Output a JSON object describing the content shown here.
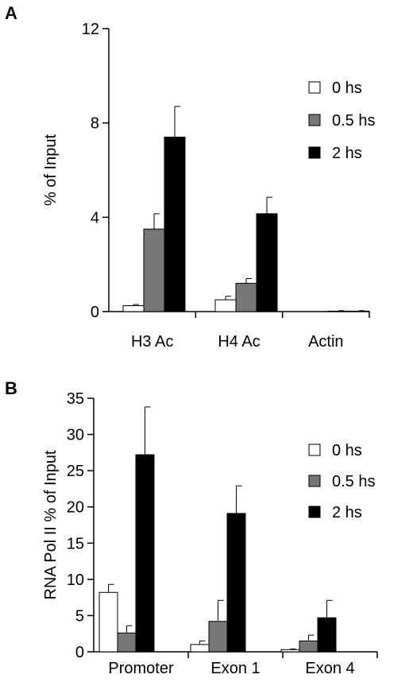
{
  "chart_data": [
    {
      "panel": "A",
      "type": "bar",
      "ylabel": "% of Input",
      "ylim": [
        0,
        12
      ],
      "yticks": [
        0,
        4,
        8,
        12
      ],
      "categories": [
        "H3 Ac",
        "H4 Ac",
        "Actin"
      ],
      "series": [
        {
          "name": "0 hs",
          "color": "#ffffff",
          "values": [
            0.25,
            0.5,
            0.0
          ],
          "errors": [
            0.05,
            0.15,
            0.0
          ]
        },
        {
          "name": "0.5 hs",
          "color": "#777777",
          "values": [
            3.5,
            1.2,
            0.02
          ],
          "errors": [
            0.65,
            0.2,
            0.02
          ]
        },
        {
          "name": "2 hs",
          "color": "#000000",
          "values": [
            7.4,
            4.15,
            0.02
          ],
          "errors": [
            1.3,
            0.7,
            0.02
          ]
        }
      ],
      "legend_position": "top-right"
    },
    {
      "panel": "B",
      "type": "bar",
      "ylabel": "RNA Pol II % of Input",
      "ylim": [
        0,
        35
      ],
      "yticks": [
        0,
        5,
        10,
        15,
        20,
        25,
        30,
        35
      ],
      "categories": [
        "Promoter",
        "Exon 1",
        "Exon 4"
      ],
      "series": [
        {
          "name": "0 hs",
          "color": "#ffffff",
          "values": [
            8.2,
            1.0,
            0.3
          ],
          "errors": [
            1.1,
            0.5,
            0.1
          ]
        },
        {
          "name": "0.5 hs",
          "color": "#777777",
          "values": [
            2.6,
            4.2,
            1.5
          ],
          "errors": [
            1.0,
            2.9,
            0.8
          ]
        },
        {
          "name": "2 hs",
          "color": "#000000",
          "values": [
            27.2,
            19.1,
            4.7
          ],
          "errors": [
            6.6,
            3.8,
            2.4
          ]
        }
      ],
      "legend_position": "top-right"
    }
  ]
}
